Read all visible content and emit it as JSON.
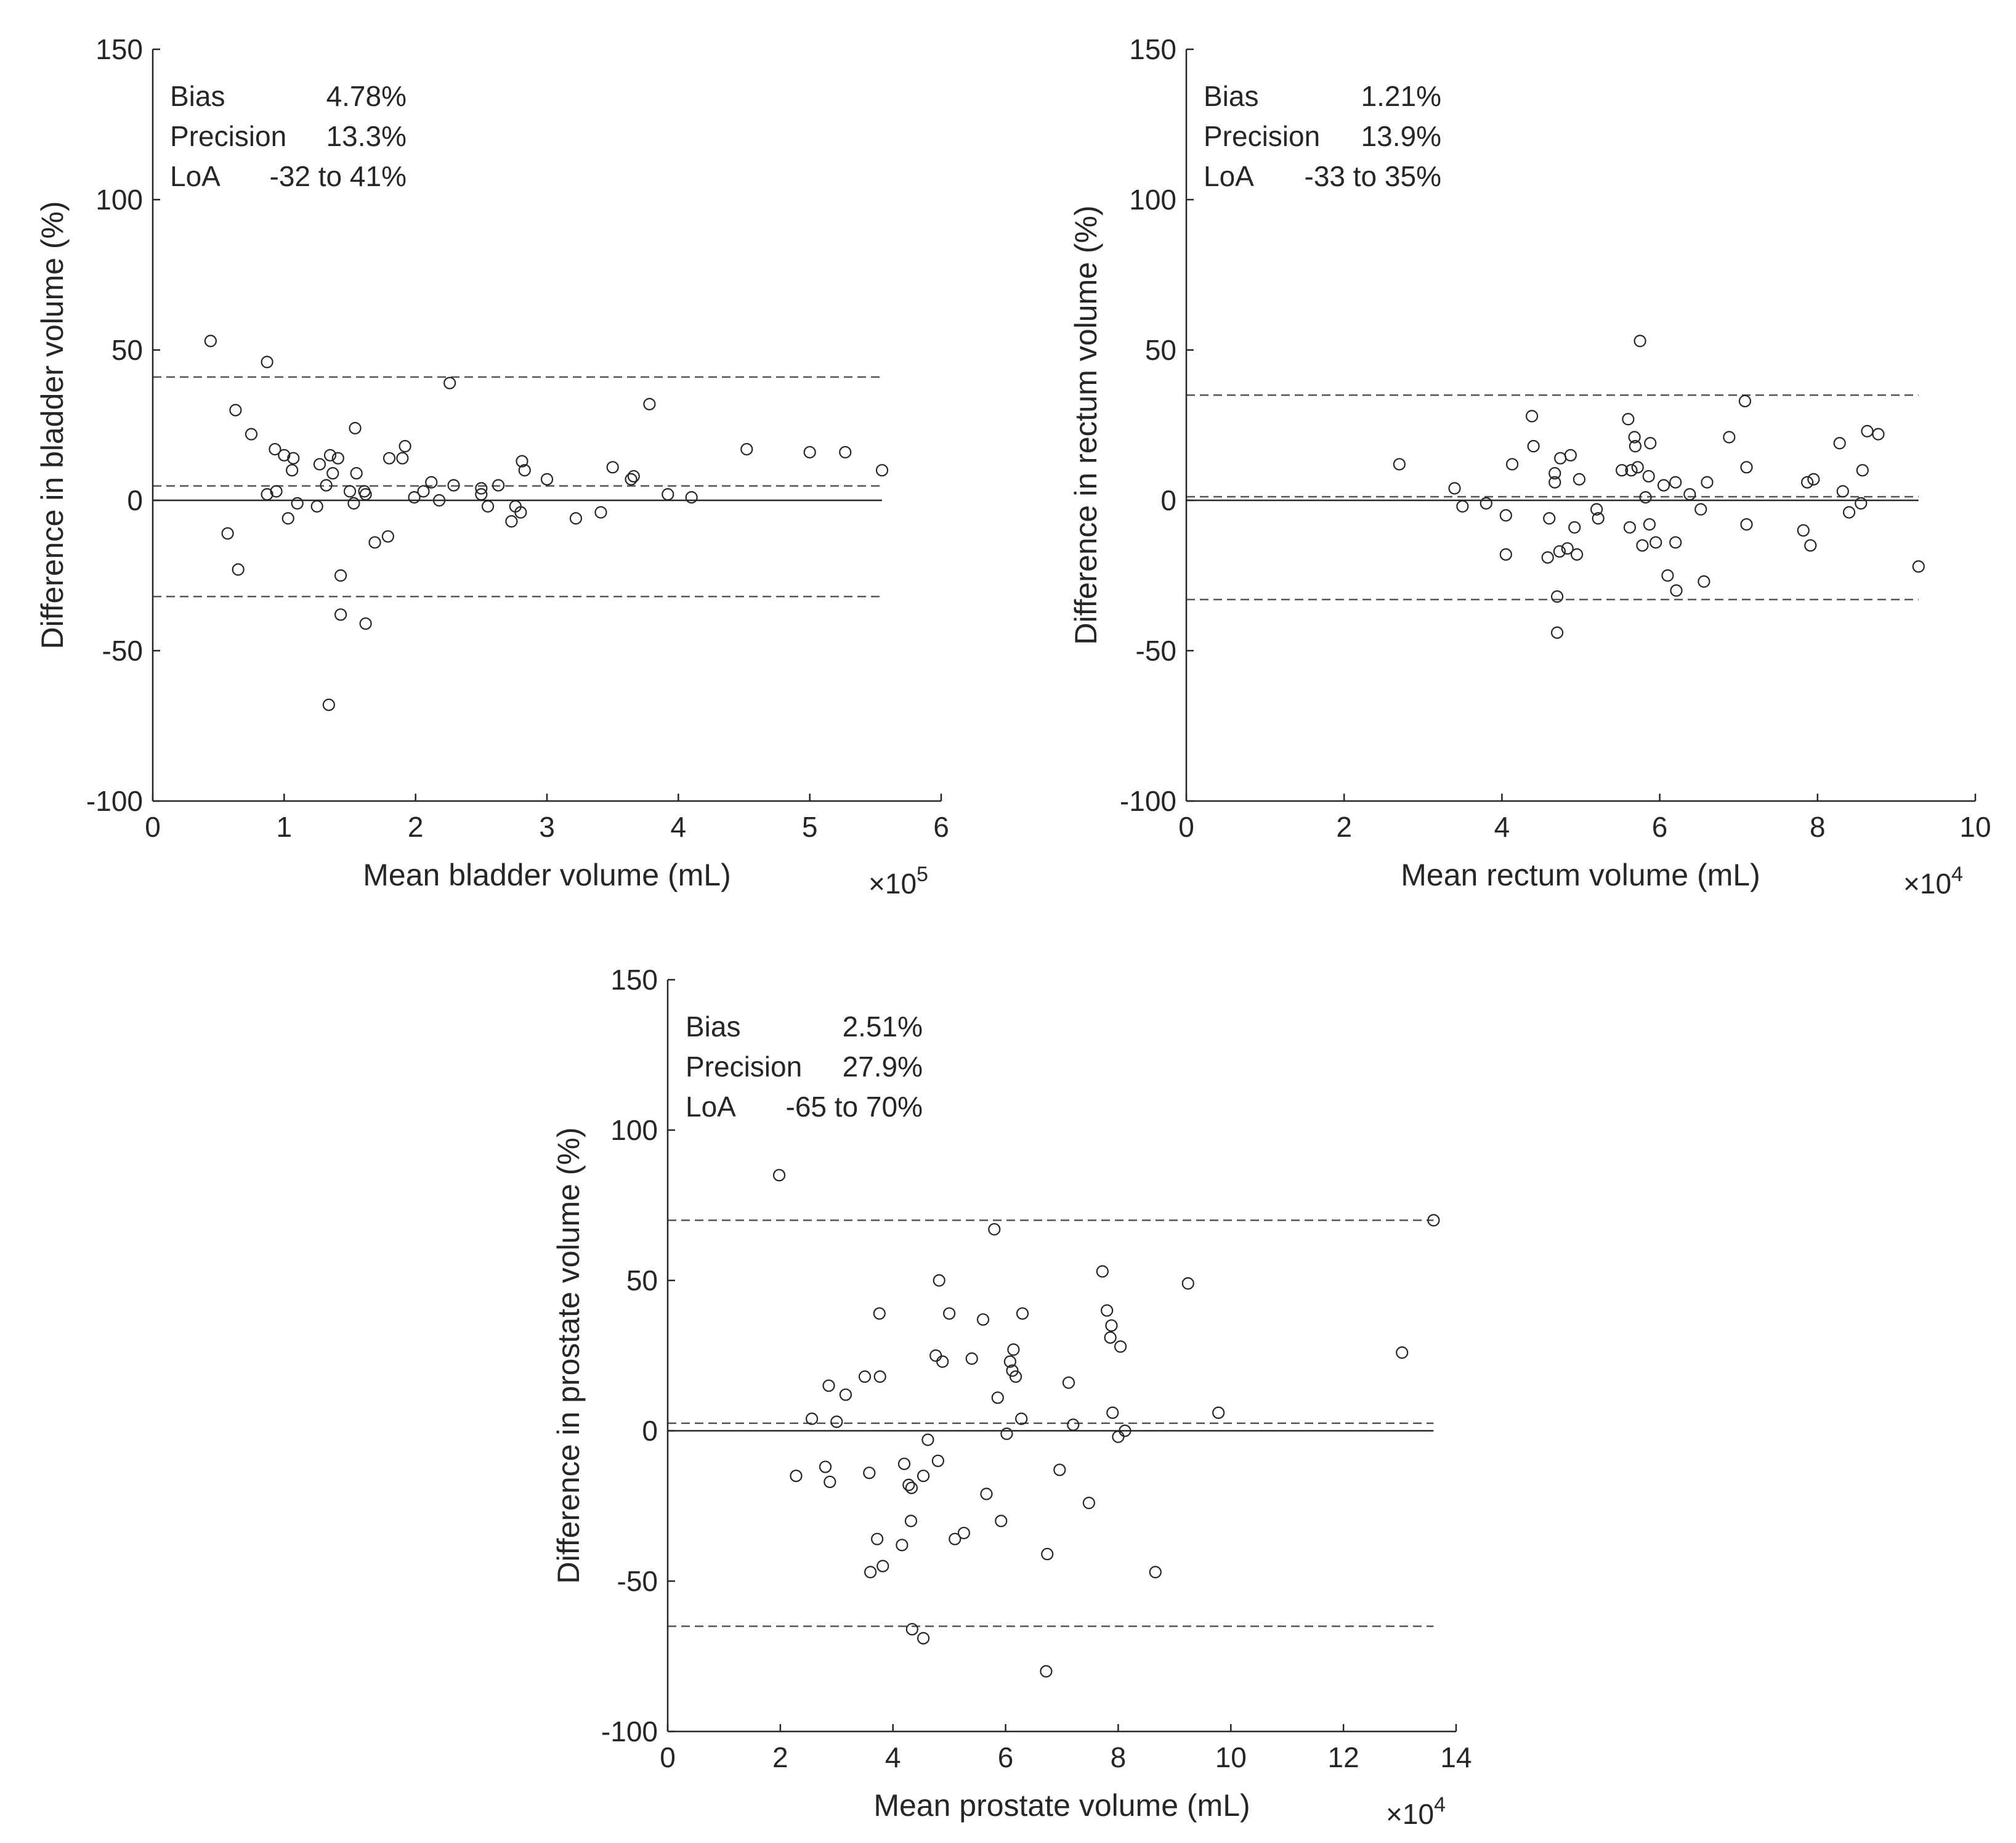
{
  "chart_data": [
    {
      "type": "scatter",
      "id": "bladder",
      "xlabel": "Mean bladder volume (mL)",
      "ylabel": "Difference in bladder volume (%)",
      "xlim": [
        0,
        6
      ],
      "ylim": [
        -100,
        150
      ],
      "x_multiplier": "×10",
      "x_exponent": "5",
      "xticks": [
        0,
        1,
        2,
        3,
        4,
        5,
        6
      ],
      "yticks": [
        -100,
        -50,
        0,
        50,
        100,
        150
      ],
      "stats": {
        "bias_label": "Bias",
        "bias_value": "4.78%",
        "precision_label": "Precision",
        "precision_value": "13.3%",
        "loa_label": "LoA",
        "loa_value": "-32 to 41%"
      },
      "lines": {
        "zero": 0,
        "bias": 4.78,
        "loa_low": -32,
        "loa_high": 41,
        "x_end": 5.55
      },
      "points": [
        [
          0.44,
          53
        ],
        [
          0.57,
          -11
        ],
        [
          0.63,
          30
        ],
        [
          0.65,
          -23
        ],
        [
          0.75,
          22
        ],
        [
          0.87,
          46
        ],
        [
          0.87,
          2
        ],
        [
          0.93,
          17
        ],
        [
          0.94,
          3
        ],
        [
          1.0,
          15
        ],
        [
          1.03,
          -6
        ],
        [
          1.06,
          10
        ],
        [
          1.07,
          14
        ],
        [
          1.1,
          -1
        ],
        [
          1.25,
          -2
        ],
        [
          1.27,
          12
        ],
        [
          1.32,
          5
        ],
        [
          1.34,
          -68
        ],
        [
          1.35,
          15
        ],
        [
          1.37,
          9
        ],
        [
          1.41,
          14
        ],
        [
          1.43,
          -25
        ],
        [
          1.43,
          -38
        ],
        [
          1.5,
          3
        ],
        [
          1.53,
          -1
        ],
        [
          1.54,
          24
        ],
        [
          1.55,
          9
        ],
        [
          1.61,
          3
        ],
        [
          1.62,
          2
        ],
        [
          1.62,
          -41
        ],
        [
          1.69,
          -14
        ],
        [
          1.79,
          -12
        ],
        [
          1.8,
          14
        ],
        [
          1.9,
          14
        ],
        [
          1.92,
          18
        ],
        [
          1.99,
          1
        ],
        [
          2.06,
          3
        ],
        [
          2.12,
          6
        ],
        [
          2.18,
          0
        ],
        [
          2.26,
          39
        ],
        [
          2.29,
          5
        ],
        [
          2.5,
          2
        ],
        [
          2.5,
          4
        ],
        [
          2.55,
          -2
        ],
        [
          2.63,
          5
        ],
        [
          2.73,
          -7
        ],
        [
          2.76,
          -2
        ],
        [
          2.8,
          -4
        ],
        [
          2.81,
          13
        ],
        [
          2.83,
          10
        ],
        [
          3.0,
          7
        ],
        [
          3.22,
          -6
        ],
        [
          3.41,
          -4
        ],
        [
          3.5,
          11
        ],
        [
          3.64,
          7
        ],
        [
          3.66,
          8
        ],
        [
          3.78,
          32
        ],
        [
          3.92,
          2
        ],
        [
          4.1,
          1
        ],
        [
          4.52,
          17
        ],
        [
          5.0,
          16
        ],
        [
          5.27,
          16
        ],
        [
          5.55,
          10
        ]
      ]
    },
    {
      "type": "scatter",
      "id": "rectum",
      "xlabel": "Mean rectum volume (mL)",
      "ylabel": "Difference in rectum volume (%)",
      "xlim": [
        0,
        10
      ],
      "ylim": [
        -100,
        150
      ],
      "x_multiplier": "×10",
      "x_exponent": "4",
      "xticks": [
        0,
        2,
        4,
        6,
        8,
        10
      ],
      "yticks": [
        -100,
        -50,
        0,
        50,
        100,
        150
      ],
      "stats": {
        "bias_label": "Bias",
        "bias_value": "1.21%",
        "precision_label": "Precision",
        "precision_value": "13.9%",
        "loa_label": "LoA",
        "loa_value": "-33 to 35%"
      },
      "lines": {
        "zero": 0,
        "bias": 1.21,
        "loa_low": -33,
        "loa_high": 35,
        "x_end": 9.28
      },
      "points": [
        [
          2.7,
          12
        ],
        [
          3.4,
          4
        ],
        [
          3.5,
          -2
        ],
        [
          3.8,
          -1
        ],
        [
          4.05,
          -5
        ],
        [
          4.05,
          -18
        ],
        [
          4.13,
          12
        ],
        [
          4.38,
          28
        ],
        [
          4.4,
          18
        ],
        [
          4.58,
          -19
        ],
        [
          4.6,
          -6
        ],
        [
          4.67,
          9
        ],
        [
          4.67,
          6
        ],
        [
          4.7,
          -32
        ],
        [
          4.7,
          -44
        ],
        [
          4.73,
          -17
        ],
        [
          4.74,
          14
        ],
        [
          4.83,
          -16
        ],
        [
          4.87,
          15
        ],
        [
          4.92,
          -9
        ],
        [
          4.95,
          -18
        ],
        [
          4.98,
          7
        ],
        [
          5.2,
          -3
        ],
        [
          5.22,
          -6
        ],
        [
          5.52,
          10
        ],
        [
          5.6,
          27
        ],
        [
          5.62,
          -9
        ],
        [
          5.64,
          10
        ],
        [
          5.68,
          21
        ],
        [
          5.69,
          18
        ],
        [
          5.72,
          11
        ],
        [
          5.75,
          53
        ],
        [
          5.78,
          -15
        ],
        [
          5.82,
          1
        ],
        [
          5.86,
          8
        ],
        [
          5.87,
          -8
        ],
        [
          5.88,
          19
        ],
        [
          5.95,
          -14
        ],
        [
          6.05,
          5
        ],
        [
          6.1,
          -25
        ],
        [
          6.2,
          6
        ],
        [
          6.2,
          -14
        ],
        [
          6.21,
          -30
        ],
        [
          6.38,
          2
        ],
        [
          6.52,
          -3
        ],
        [
          6.56,
          -27
        ],
        [
          6.6,
          6
        ],
        [
          6.88,
          21
        ],
        [
          7.08,
          33
        ],
        [
          7.1,
          11
        ],
        [
          7.1,
          -8
        ],
        [
          7.82,
          -10
        ],
        [
          7.87,
          6
        ],
        [
          7.91,
          -15
        ],
        [
          7.95,
          7
        ],
        [
          8.28,
          19
        ],
        [
          8.32,
          3
        ],
        [
          8.4,
          -4
        ],
        [
          8.55,
          -1
        ],
        [
          8.57,
          10
        ],
        [
          8.63,
          23
        ],
        [
          8.77,
          22
        ],
        [
          9.28,
          -22
        ]
      ]
    },
    {
      "type": "scatter",
      "id": "prostate",
      "xlabel": "Mean prostate volume (mL)",
      "ylabel": "Difference in prostate volume (%)",
      "xlim": [
        0,
        14
      ],
      "ylim": [
        -100,
        150
      ],
      "x_multiplier": "×10",
      "x_exponent": "4",
      "xticks": [
        0,
        2,
        4,
        6,
        8,
        10,
        12,
        14
      ],
      "yticks": [
        -100,
        -50,
        0,
        50,
        100,
        150
      ],
      "stats": {
        "bias_label": "Bias",
        "bias_value": "2.51%",
        "precision_label": "Precision",
        "precision_value": "27.9%",
        "loa_label": "LoA",
        "loa_value": "-65 to 70%"
      },
      "lines": {
        "zero": 0,
        "bias": 2.51,
        "loa_low": -65,
        "loa_high": 70,
        "x_end": 13.6
      },
      "points": [
        [
          1.98,
          85
        ],
        [
          2.28,
          -15
        ],
        [
          2.56,
          4
        ],
        [
          2.8,
          -12
        ],
        [
          2.86,
          15
        ],
        [
          2.88,
          -17
        ],
        [
          3.0,
          3
        ],
        [
          3.16,
          12
        ],
        [
          3.5,
          18
        ],
        [
          3.58,
          -14
        ],
        [
          3.6,
          -47
        ],
        [
          3.72,
          -36
        ],
        [
          3.76,
          39
        ],
        [
          3.77,
          18
        ],
        [
          3.82,
          -45
        ],
        [
          4.16,
          -38
        ],
        [
          4.2,
          -11
        ],
        [
          4.28,
          -18
        ],
        [
          4.32,
          -30
        ],
        [
          4.33,
          -19
        ],
        [
          4.34,
          -66
        ],
        [
          4.54,
          -15
        ],
        [
          4.54,
          -69
        ],
        [
          4.62,
          -3
        ],
        [
          4.76,
          25
        ],
        [
          4.8,
          -10
        ],
        [
          4.82,
          50
        ],
        [
          4.88,
          23
        ],
        [
          5.0,
          39
        ],
        [
          5.1,
          -36
        ],
        [
          5.26,
          -34
        ],
        [
          5.4,
          24
        ],
        [
          5.6,
          37
        ],
        [
          5.66,
          -21
        ],
        [
          5.8,
          67
        ],
        [
          5.86,
          11
        ],
        [
          5.92,
          -30
        ],
        [
          6.02,
          -1
        ],
        [
          6.08,
          23
        ],
        [
          6.12,
          20
        ],
        [
          6.14,
          27
        ],
        [
          6.18,
          18
        ],
        [
          6.28,
          4
        ],
        [
          6.3,
          39
        ],
        [
          6.72,
          -80
        ],
        [
          6.74,
          -41
        ],
        [
          6.96,
          -13
        ],
        [
          7.12,
          16
        ],
        [
          7.2,
          2
        ],
        [
          7.48,
          -24
        ],
        [
          7.72,
          53
        ],
        [
          7.8,
          40
        ],
        [
          7.86,
          31
        ],
        [
          7.88,
          35
        ],
        [
          7.9,
          6
        ],
        [
          8.0,
          -2
        ],
        [
          8.04,
          28
        ],
        [
          8.12,
          0
        ],
        [
          8.66,
          -47
        ],
        [
          9.24,
          49
        ],
        [
          9.78,
          6
        ],
        [
          13.04,
          26
        ],
        [
          13.6,
          70
        ]
      ]
    }
  ]
}
